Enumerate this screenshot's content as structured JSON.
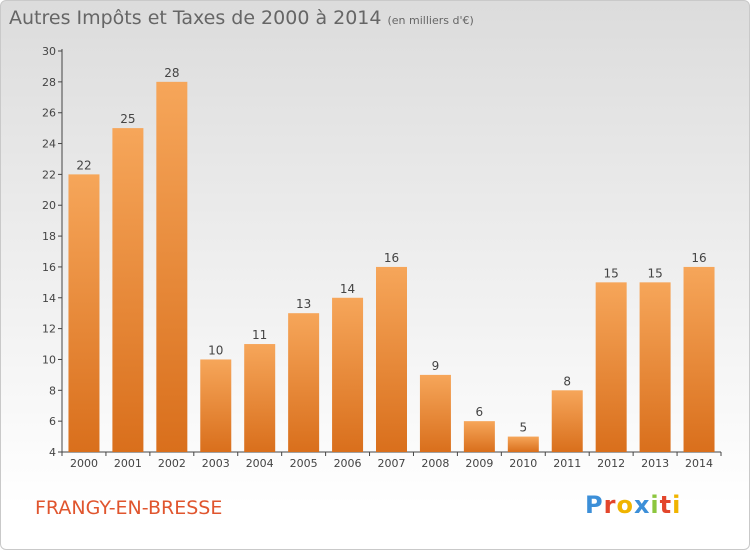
{
  "header": {
    "title": "Autres Impôts et Taxes de 2000 à 2014",
    "unit": "(en milliers d'€)"
  },
  "footer": {
    "place": "FRANGY-EN-BRESSE",
    "logo_text": "Proxiti",
    "logo_colors": [
      "#3c8fd8",
      "#e3462c",
      "#f0b400",
      "#3c8fd8",
      "#8cc63e",
      "#e3462c",
      "#f0b400"
    ]
  },
  "colors": {
    "bar_light": "#f6a65a",
    "bar_dark": "#d96f1c",
    "axis": "#444444",
    "grid": "#bbbbbb"
  },
  "chart_data": {
    "type": "bar",
    "title": "Autres Impôts et Taxes de 2000 à 2014",
    "subtitle": "(en milliers d'€)",
    "categories": [
      "2000",
      "2001",
      "2002",
      "2003",
      "2004",
      "2005",
      "2006",
      "2007",
      "2008",
      "2009",
      "2010",
      "2011",
      "2012",
      "2013",
      "2014"
    ],
    "values": [
      22,
      25,
      28,
      10,
      11,
      13,
      14,
      16,
      9,
      6,
      5,
      8,
      15,
      15,
      16
    ],
    "ylim": [
      4,
      30
    ],
    "yticks": [
      4,
      6,
      8,
      10,
      12,
      14,
      16,
      18,
      20,
      22,
      24,
      26,
      28,
      30
    ],
    "grid": false,
    "data_labels": true
  }
}
